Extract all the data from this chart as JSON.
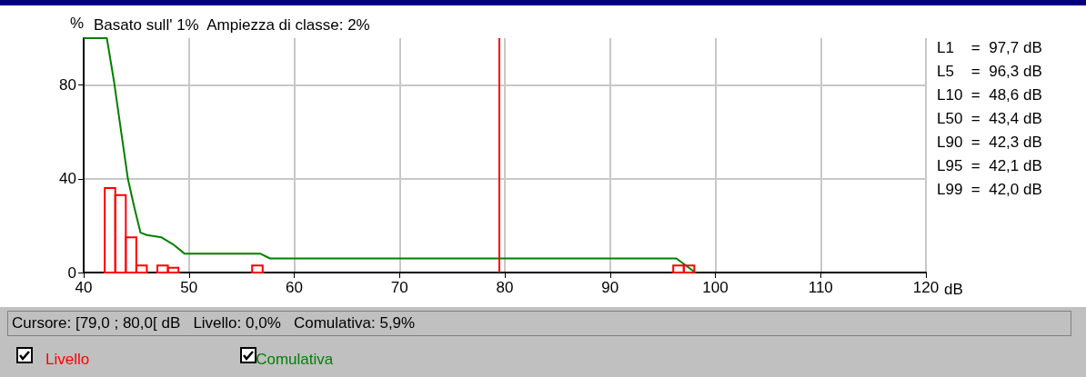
{
  "chart_data": {
    "type": "histogram",
    "title": "Basato sull' 1%  Ampiezza di classe: 2%",
    "ylabel": "%",
    "xlabel": "dB",
    "series": [
      {
        "name": "Livello",
        "color": "#ff0000",
        "bins": [
          42,
          43,
          44,
          45,
          46,
          47,
          48,
          49,
          50,
          51,
          52,
          53,
          54,
          55,
          56,
          57,
          58,
          59,
          60,
          61,
          62,
          63,
          64,
          65,
          66,
          67,
          68,
          69,
          70,
          71,
          72,
          73,
          74,
          75,
          76,
          77,
          78,
          79,
          80,
          81,
          82,
          83,
          84,
          85,
          86,
          87,
          88,
          89,
          90,
          91,
          92,
          93,
          94,
          95,
          96,
          97,
          98
        ],
        "values": [
          36,
          33,
          15,
          3,
          0,
          3,
          2,
          0,
          0,
          0,
          0,
          0,
          0,
          0,
          3,
          0,
          0,
          0,
          0,
          0,
          0,
          0,
          0,
          0,
          0,
          0,
          0,
          0,
          0,
          0,
          0,
          0,
          0,
          0,
          0,
          0,
          0,
          0,
          0,
          0,
          0,
          0,
          0,
          0,
          0,
          0,
          0,
          0,
          0,
          0,
          0,
          0,
          0,
          0,
          3,
          3
        ]
      },
      {
        "name": "Comulativa",
        "type": "line",
        "color": "#008000",
        "x": [
          40,
          42.2,
          42.9,
          43.5,
          44.2,
          44.8,
          45.4,
          46,
          47.4,
          48.5,
          49.6,
          56.8,
          57.7,
          96.3,
          97.2,
          98.1
        ],
        "values": [
          100,
          100,
          81,
          62,
          40,
          28,
          17,
          16,
          15,
          12,
          8,
          8,
          6,
          6,
          3,
          0
        ]
      }
    ],
    "xlim": [
      40,
      120
    ],
    "xticks": [
      40,
      50,
      60,
      70,
      80,
      90,
      100,
      110,
      120
    ],
    "ylim": [
      0,
      100
    ],
    "yticks": [
      0,
      40,
      80
    ],
    "grid": true,
    "legend": "bottom left",
    "marker": "none",
    "ref_lines": [
      {
        "axis": "x",
        "value": 79.5,
        "color": "#ff0000"
      }
    ],
    "annotations": [
      "L1    =  97,7 dB",
      "L5    =  96,3 dB",
      "L10  =  48,6 dB",
      "L50  =  43,4 dB",
      "L90  =  42,3 dB",
      "L95  =  42,1 dB",
      "L99  =  42,0 dB",
      "Cursore: [79,0 ; 80,0[ dB   Livello: 0,0%   Comulativa: 5,9%"
    ]
  }
}
